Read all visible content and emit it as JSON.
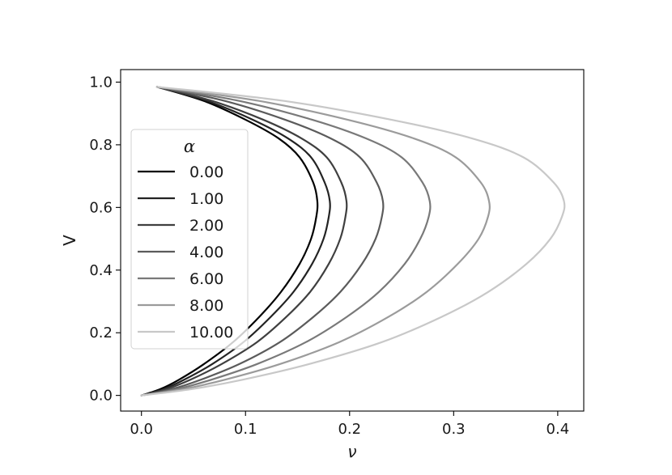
{
  "chart_data": {
    "type": "line",
    "xlabel": "ν",
    "ylabel": "V",
    "xlim": [
      -0.02,
      0.425
    ],
    "ylim": [
      -0.05,
      1.04
    ],
    "x_ticks": [
      0.0,
      0.1,
      0.2,
      0.3,
      0.4
    ],
    "x_tick_labels": [
      "0.0",
      "0.1",
      "0.2",
      "0.3",
      "0.4"
    ],
    "y_ticks": [
      0.0,
      0.2,
      0.4,
      0.6,
      0.8,
      1.0
    ],
    "y_tick_labels": [
      "0.0",
      "0.2",
      "0.4",
      "0.6",
      "0.8",
      "1.0"
    ],
    "grid": false,
    "legend": {
      "title": "α",
      "placement": "center-left"
    },
    "series": [
      {
        "name": "0.00",
        "color": "#000000",
        "points": [
          [
            0.0,
            0.0
          ],
          [
            0.018,
            0.02
          ],
          [
            0.036,
            0.05
          ],
          [
            0.06,
            0.1
          ],
          [
            0.088,
            0.17
          ],
          [
            0.113,
            0.25
          ],
          [
            0.134,
            0.33
          ],
          [
            0.152,
            0.42
          ],
          [
            0.163,
            0.5
          ],
          [
            0.168,
            0.57
          ],
          [
            0.169,
            0.62
          ],
          [
            0.165,
            0.68
          ],
          [
            0.152,
            0.76
          ],
          [
            0.132,
            0.82
          ],
          [
            0.1,
            0.88
          ],
          [
            0.06,
            0.94
          ],
          [
            0.015,
            0.985
          ]
        ]
      },
      {
        "name": "1.00",
        "color": "#232323",
        "points": [
          [
            0.0,
            0.0
          ],
          [
            0.021,
            0.02
          ],
          [
            0.041,
            0.05
          ],
          [
            0.068,
            0.1
          ],
          [
            0.098,
            0.17
          ],
          [
            0.124,
            0.25
          ],
          [
            0.146,
            0.33
          ],
          [
            0.164,
            0.42
          ],
          [
            0.175,
            0.5
          ],
          [
            0.18,
            0.57
          ],
          [
            0.181,
            0.62
          ],
          [
            0.176,
            0.68
          ],
          [
            0.163,
            0.76
          ],
          [
            0.141,
            0.82
          ],
          [
            0.107,
            0.88
          ],
          [
            0.063,
            0.94
          ],
          [
            0.015,
            0.985
          ]
        ]
      },
      {
        "name": "2.00",
        "color": "#3f3f3f",
        "points": [
          [
            0.0,
            0.0
          ],
          [
            0.024,
            0.02
          ],
          [
            0.047,
            0.05
          ],
          [
            0.077,
            0.1
          ],
          [
            0.111,
            0.17
          ],
          [
            0.139,
            0.25
          ],
          [
            0.162,
            0.33
          ],
          [
            0.18,
            0.42
          ],
          [
            0.191,
            0.5
          ],
          [
            0.196,
            0.57
          ],
          [
            0.197,
            0.62
          ],
          [
            0.192,
            0.68
          ],
          [
            0.178,
            0.76
          ],
          [
            0.154,
            0.82
          ],
          [
            0.117,
            0.88
          ],
          [
            0.068,
            0.94
          ],
          [
            0.015,
            0.985
          ]
        ]
      },
      {
        "name": "4.00",
        "color": "#5b5b5b",
        "points": [
          [
            0.0,
            0.0
          ],
          [
            0.029,
            0.02
          ],
          [
            0.057,
            0.05
          ],
          [
            0.094,
            0.1
          ],
          [
            0.133,
            0.17
          ],
          [
            0.165,
            0.25
          ],
          [
            0.191,
            0.33
          ],
          [
            0.212,
            0.42
          ],
          [
            0.225,
            0.5
          ],
          [
            0.231,
            0.57
          ],
          [
            0.232,
            0.62
          ],
          [
            0.226,
            0.68
          ],
          [
            0.21,
            0.76
          ],
          [
            0.182,
            0.82
          ],
          [
            0.138,
            0.88
          ],
          [
            0.08,
            0.94
          ],
          [
            0.015,
            0.985
          ]
        ]
      },
      {
        "name": "6.00",
        "color": "#797979",
        "points": [
          [
            0.0,
            0.0
          ],
          [
            0.034,
            0.02
          ],
          [
            0.067,
            0.05
          ],
          [
            0.111,
            0.1
          ],
          [
            0.158,
            0.17
          ],
          [
            0.197,
            0.25
          ],
          [
            0.228,
            0.33
          ],
          [
            0.253,
            0.42
          ],
          [
            0.268,
            0.5
          ],
          [
            0.276,
            0.57
          ],
          [
            0.277,
            0.62
          ],
          [
            0.27,
            0.68
          ],
          [
            0.25,
            0.76
          ],
          [
            0.216,
            0.82
          ],
          [
            0.164,
            0.88
          ],
          [
            0.094,
            0.94
          ],
          [
            0.015,
            0.985
          ]
        ]
      },
      {
        "name": "8.00",
        "color": "#9b9b9b",
        "points": [
          [
            0.0,
            0.0
          ],
          [
            0.04,
            0.02
          ],
          [
            0.08,
            0.05
          ],
          [
            0.133,
            0.1
          ],
          [
            0.19,
            0.17
          ],
          [
            0.237,
            0.25
          ],
          [
            0.274,
            0.33
          ],
          [
            0.304,
            0.42
          ],
          [
            0.324,
            0.5
          ],
          [
            0.333,
            0.57
          ],
          [
            0.334,
            0.62
          ],
          [
            0.326,
            0.68
          ],
          [
            0.302,
            0.76
          ],
          [
            0.262,
            0.82
          ],
          [
            0.198,
            0.88
          ],
          [
            0.113,
            0.94
          ],
          [
            0.015,
            0.985
          ]
        ]
      },
      {
        "name": "10.00",
        "color": "#c8c8c8",
        "points": [
          [
            0.0,
            0.0
          ],
          [
            0.048,
            0.02
          ],
          [
            0.097,
            0.05
          ],
          [
            0.161,
            0.1
          ],
          [
            0.231,
            0.17
          ],
          [
            0.288,
            0.25
          ],
          [
            0.333,
            0.33
          ],
          [
            0.37,
            0.42
          ],
          [
            0.393,
            0.5
          ],
          [
            0.404,
            0.57
          ],
          [
            0.406,
            0.62
          ],
          [
            0.396,
            0.68
          ],
          [
            0.367,
            0.76
          ],
          [
            0.318,
            0.82
          ],
          [
            0.24,
            0.88
          ],
          [
            0.137,
            0.94
          ],
          [
            0.015,
            0.985
          ]
        ]
      }
    ]
  }
}
